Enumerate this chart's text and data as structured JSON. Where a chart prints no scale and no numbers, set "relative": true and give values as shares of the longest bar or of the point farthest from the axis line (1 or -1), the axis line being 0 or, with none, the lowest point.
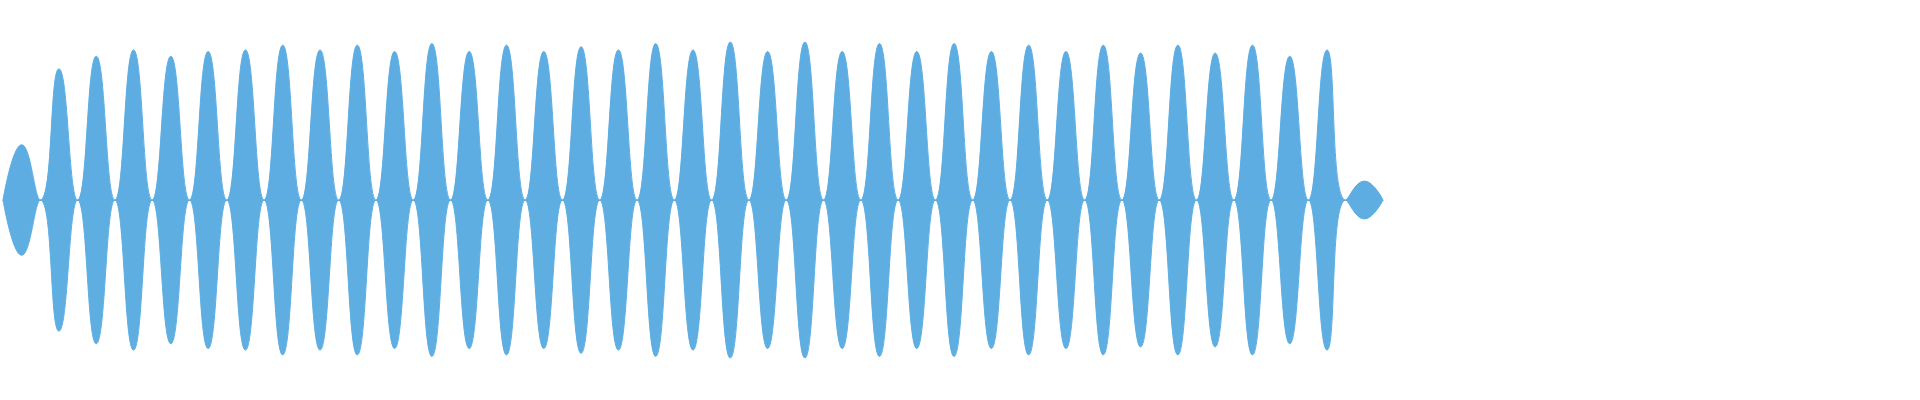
{
  "chart_data": {
    "type": "area",
    "relative": true,
    "grid": false,
    "categories": [
      null,
      null,
      null,
      null,
      null,
      null,
      null,
      null,
      null,
      null,
      null,
      null,
      null,
      null,
      null,
      null,
      null,
      null,
      null,
      null,
      null,
      null,
      null,
      null,
      null,
      null,
      null,
      null,
      null,
      null,
      null,
      null,
      null,
      null,
      null,
      null,
      null,
      null,
      null,
      null,
      null,
      null,
      null,
      null,
      null,
      null,
      null,
      null,
      null,
      null,
      null,
      null,
      null,
      null,
      null,
      null,
      null,
      null,
      null,
      null,
      null,
      null,
      null,
      null,
      null,
      null,
      null,
      null,
      null,
      null,
      null,
      null,
      null,
      null,
      null
    ],
    "series": [
      {
        "color": "#5dade2",
        "values": [
          0,
          0.35,
          0,
          0.83,
          0,
          0.91,
          0,
          0.95,
          0,
          0.91,
          0,
          0.94,
          0,
          0.95,
          0,
          0.98,
          0,
          0.95,
          0,
          0.98,
          0,
          0.94,
          0,
          0.99,
          0,
          0.94,
          0,
          0.98,
          0,
          0.94,
          0,
          0.97,
          0,
          0.95,
          0,
          0.99,
          0,
          0.95,
          0,
          1,
          0,
          0.94,
          0,
          1,
          0,
          0.94,
          0,
          0.99,
          0,
          0.94,
          0,
          0.99,
          0,
          0.94,
          0,
          0.98,
          0,
          0.94,
          0,
          0.98,
          0,
          0.93,
          0,
          0.98,
          0,
          0.93,
          0,
          0.98,
          0,
          0.91,
          0,
          0.95,
          0,
          0.12,
          0
        ]
      },
      {
        "color": "#5eaee2",
        "values": [
          0,
          -0.35,
          0,
          -0.83,
          0,
          -0.91,
          0,
          -0.95,
          0,
          -0.91,
          0,
          -0.94,
          0,
          -0.95,
          0,
          -0.98,
          0,
          -0.95,
          0,
          -0.98,
          0,
          -0.94,
          0,
          -0.99,
          0,
          -0.94,
          0,
          -0.98,
          0,
          -0.94,
          0,
          -0.97,
          0,
          -0.95,
          0,
          -0.99,
          0,
          -0.95,
          0,
          -1,
          0,
          -0.94,
          0,
          -1,
          0,
          -0.94,
          0,
          -0.99,
          0,
          -0.94,
          0,
          -0.99,
          0,
          -0.94,
          0,
          -0.98,
          0,
          -0.94,
          0,
          -0.98,
          0,
          -0.93,
          0,
          -0.98,
          0,
          -0.93,
          0,
          -0.98,
          0,
          -0.91,
          0,
          -0.95,
          0,
          -0.12,
          0
        ]
      }
    ]
  }
}
